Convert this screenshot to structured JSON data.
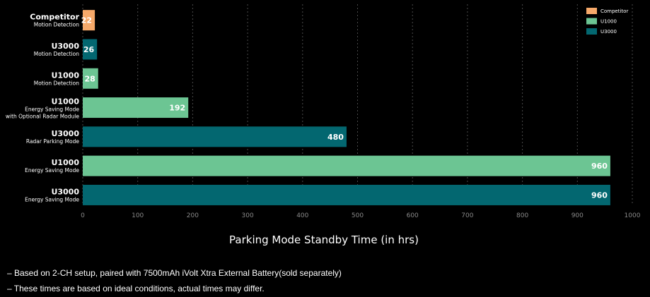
{
  "chart_data": {
    "type": "bar",
    "orientation": "horizontal",
    "xlabel": "Parking Mode Standby Time (in hrs)",
    "xlim": [
      0,
      1000
    ],
    "ticks": [
      0,
      100,
      200,
      300,
      400,
      500,
      600,
      700,
      800,
      900,
      1000
    ],
    "grid": "vertical dashed",
    "legend_position": "top-right",
    "categories": [
      {
        "name": "Competitor",
        "sub": [
          "Motion Detection"
        ],
        "value": 22,
        "series": "Competitor"
      },
      {
        "name": "U3000",
        "sub": [
          "Motion Detection"
        ],
        "value": 26,
        "series": "U3000"
      },
      {
        "name": "U1000",
        "sub": [
          "Motion Detection"
        ],
        "value": 28,
        "series": "U1000"
      },
      {
        "name": "U1000",
        "sub": [
          "Energy Saving Mode",
          "with Optional Radar Module"
        ],
        "value": 192,
        "series": "U1000"
      },
      {
        "name": "U3000",
        "sub": [
          "Radar Parking Mode"
        ],
        "value": 480,
        "series": "U3000"
      },
      {
        "name": "U1000",
        "sub": [
          "Energy Saving Mode"
        ],
        "value": 960,
        "series": "U1000"
      },
      {
        "name": "U3000",
        "sub": [
          "Energy Saving Mode"
        ],
        "value": 960,
        "series": "U3000"
      }
    ],
    "series": [
      {
        "name": "Competitor",
        "color": "#f6a96a"
      },
      {
        "name": "U1000",
        "color": "#6cc593"
      },
      {
        "name": "U3000",
        "color": "#036770"
      }
    ]
  },
  "notes": [
    "– Based on 2-CH setup, paired with 7500mAh iVolt Xtra External Battery(sold separately)",
    "– These times are based on ideal conditions, actual times may differ."
  ]
}
